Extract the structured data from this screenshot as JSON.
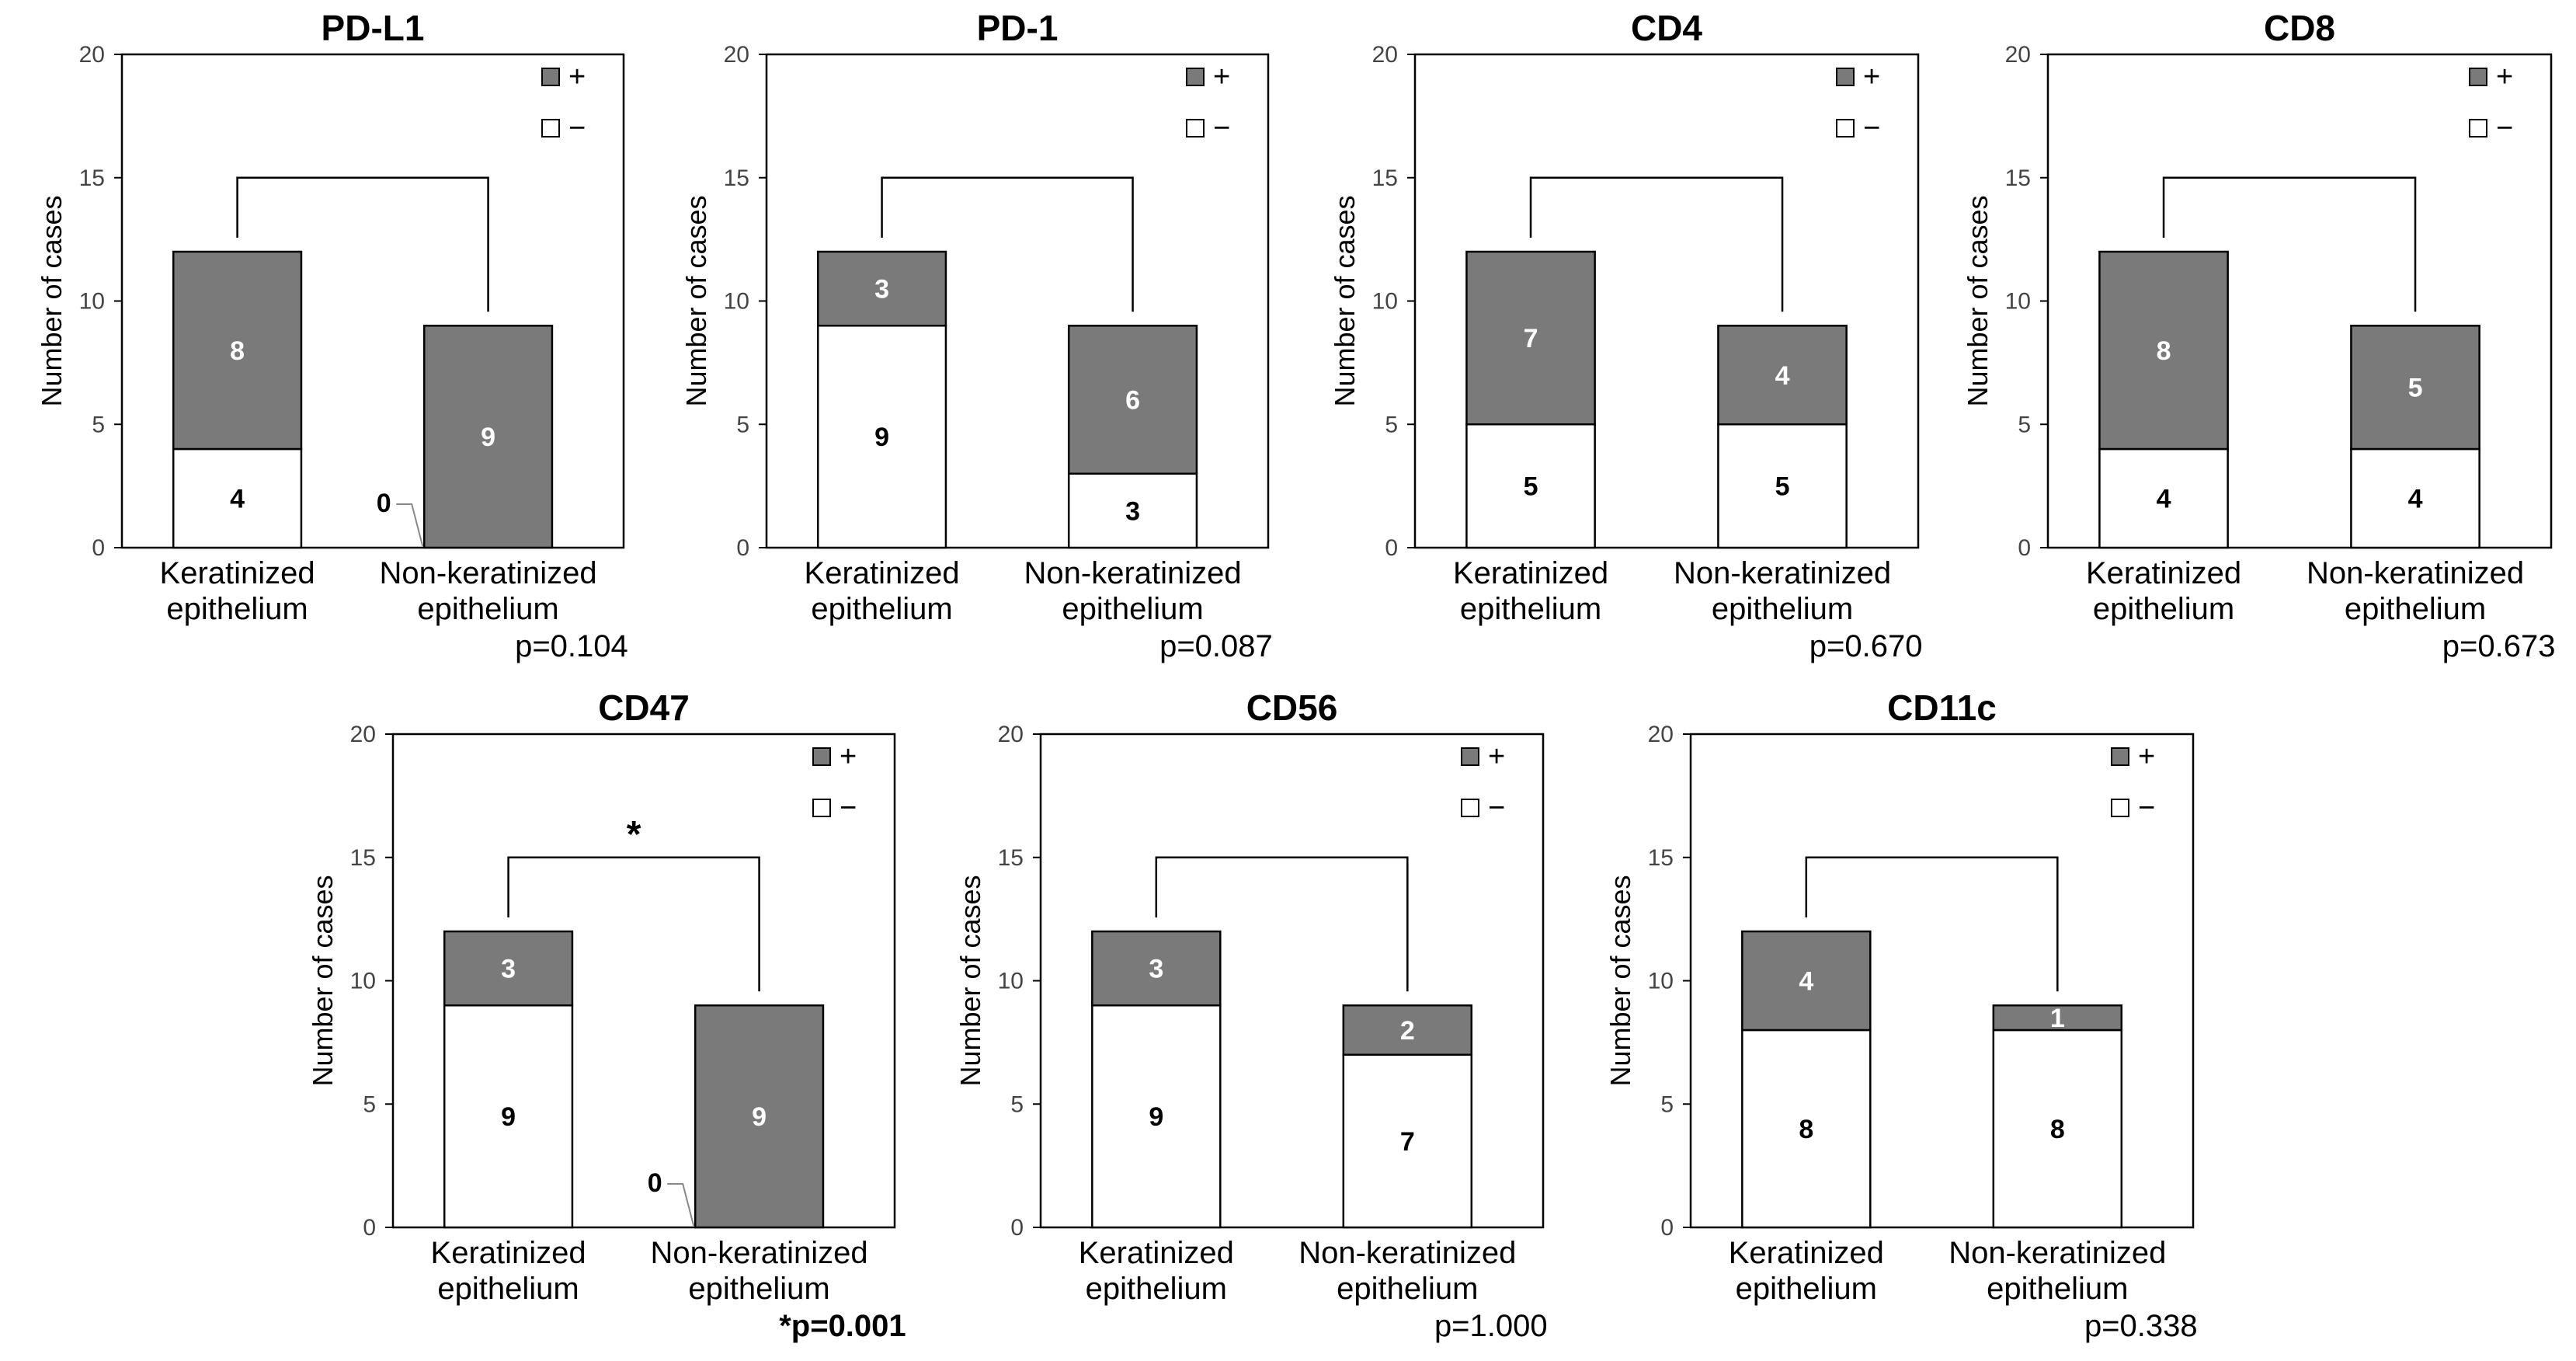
{
  "colors": {
    "positive": "#7a7a7a",
    "negative": "#ffffff",
    "stroke": "#000000",
    "bracket": "#000000"
  },
  "legend": {
    "positive_label": "+",
    "negative_label": "−"
  },
  "chart_data": [
    {
      "type": "bar",
      "stacked": true,
      "title": "PD-L1",
      "ylabel": "Number of cases",
      "ylim": [
        0,
        20
      ],
      "yticks": [
        0,
        5,
        10,
        15,
        20
      ],
      "categories": [
        [
          "Keratinized",
          "epithelium"
        ],
        [
          "Non-keratinized",
          "epithelium"
        ]
      ],
      "series": [
        {
          "name": "−",
          "values": [
            4,
            0
          ]
        },
        {
          "name": "+",
          "values": [
            8,
            9
          ]
        }
      ],
      "p_value": "p=0.104",
      "significant": false,
      "zero_callout": true
    },
    {
      "type": "bar",
      "stacked": true,
      "title": "PD-1",
      "ylabel": "Number of cases",
      "ylim": [
        0,
        20
      ],
      "yticks": [
        0,
        5,
        10,
        15,
        20
      ],
      "categories": [
        [
          "Keratinized",
          "epithelium"
        ],
        [
          "Non-keratinized",
          "epithelium"
        ]
      ],
      "series": [
        {
          "name": "−",
          "values": [
            9,
            3
          ]
        },
        {
          "name": "+",
          "values": [
            3,
            6
          ]
        }
      ],
      "p_value": "p=0.087",
      "significant": false,
      "zero_callout": false
    },
    {
      "type": "bar",
      "stacked": true,
      "title": "CD4",
      "ylabel": "Number of cases",
      "ylim": [
        0,
        20
      ],
      "yticks": [
        0,
        5,
        10,
        15,
        20
      ],
      "categories": [
        [
          "Keratinized",
          "epithelium"
        ],
        [
          "Non-keratinized",
          "epithelium"
        ]
      ],
      "series": [
        {
          "name": "−",
          "values": [
            5,
            5
          ]
        },
        {
          "name": "+",
          "values": [
            7,
            4
          ]
        }
      ],
      "p_value": "p=0.670",
      "significant": false,
      "zero_callout": false
    },
    {
      "type": "bar",
      "stacked": true,
      "title": "CD8",
      "ylabel": "Number of cases",
      "ylim": [
        0,
        20
      ],
      "yticks": [
        0,
        5,
        10,
        15,
        20
      ],
      "categories": [
        [
          "Keratinized",
          "epithelium"
        ],
        [
          "Non-keratinized",
          "epithelium"
        ]
      ],
      "series": [
        {
          "name": "−",
          "values": [
            4,
            4
          ]
        },
        {
          "name": "+",
          "values": [
            8,
            5
          ]
        }
      ],
      "p_value": "p=0.673",
      "significant": false,
      "zero_callout": false
    },
    {
      "type": "bar",
      "stacked": true,
      "title": "CD47",
      "ylabel": "Number of cases",
      "ylim": [
        0,
        20
      ],
      "yticks": [
        0,
        5,
        10,
        15,
        20
      ],
      "categories": [
        [
          "Keratinized",
          "epithelium"
        ],
        [
          "Non-keratinized",
          "epithelium"
        ]
      ],
      "series": [
        {
          "name": "−",
          "values": [
            9,
            0
          ]
        },
        {
          "name": "+",
          "values": [
            3,
            9
          ]
        }
      ],
      "p_value": "*p=0.001",
      "significant": true,
      "sig_marker": "*",
      "zero_callout": true
    },
    {
      "type": "bar",
      "stacked": true,
      "title": "CD56",
      "ylabel": "Number of cases",
      "ylim": [
        0,
        20
      ],
      "yticks": [
        0,
        5,
        10,
        15,
        20
      ],
      "categories": [
        [
          "Keratinized",
          "epithelium"
        ],
        [
          "Non-keratinized",
          "epithelium"
        ]
      ],
      "series": [
        {
          "name": "−",
          "values": [
            9,
            7
          ]
        },
        {
          "name": "+",
          "values": [
            3,
            2
          ]
        }
      ],
      "p_value": "p=1.000",
      "significant": false,
      "zero_callout": false
    },
    {
      "type": "bar",
      "stacked": true,
      "title": "CD11c",
      "ylabel": "Number of cases",
      "ylim": [
        0,
        20
      ],
      "yticks": [
        0,
        5,
        10,
        15,
        20
      ],
      "categories": [
        [
          "Keratinized",
          "epithelium"
        ],
        [
          "Non-keratinized",
          "epithelium"
        ]
      ],
      "series": [
        {
          "name": "−",
          "values": [
            8,
            8
          ]
        },
        {
          "name": "+",
          "values": [
            4,
            1
          ]
        }
      ],
      "p_value": "p=0.338",
      "significant": false,
      "zero_callout": false
    }
  ]
}
